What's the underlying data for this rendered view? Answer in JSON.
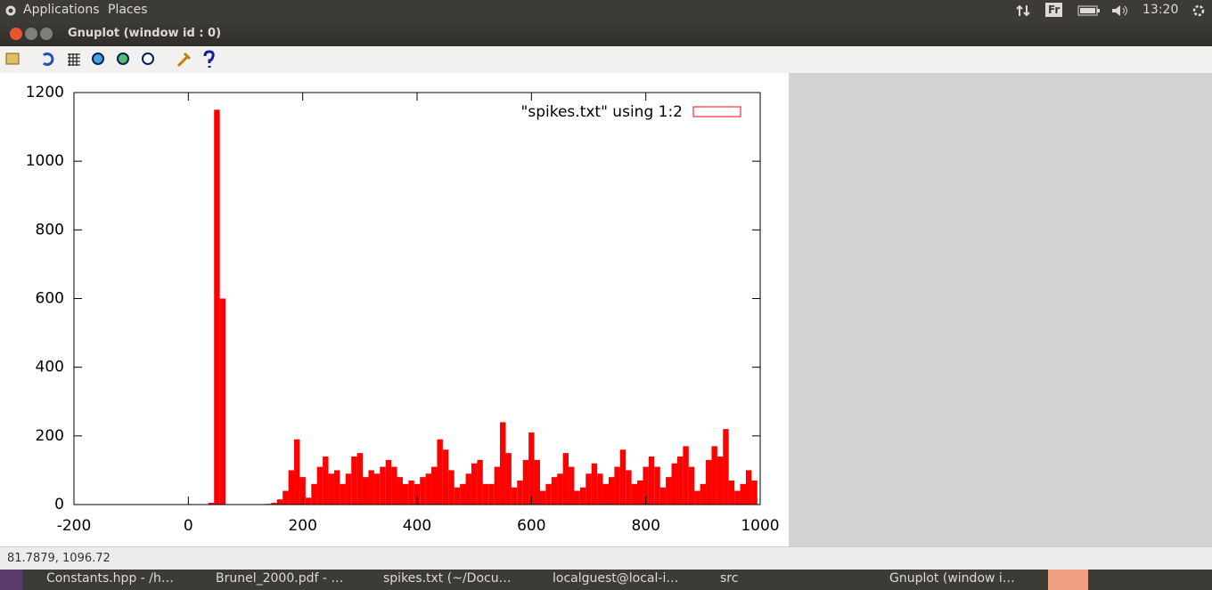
{
  "top_panel": {
    "menus": [
      "Applications",
      "Places"
    ],
    "keyboard": "Fr",
    "clock": "13:20"
  },
  "window": {
    "title": "Gnuplot (window id : 0)"
  },
  "chart_data": {
    "type": "bar",
    "legend_label": "\"spikes.txt\" using 1:2",
    "color": "#ff0000",
    "legend": "top-right",
    "x": [
      40,
      50,
      60,
      70,
      80,
      90,
      100,
      110,
      120,
      130,
      140,
      150,
      160,
      170,
      180,
      190,
      200,
      210,
      220,
      230,
      240,
      250,
      260,
      270,
      280,
      290,
      300,
      310,
      320,
      330,
      340,
      350,
      360,
      370,
      380,
      390,
      400,
      410,
      420,
      430,
      440,
      450,
      460,
      470,
      480,
      490,
      500,
      510,
      520,
      530,
      540,
      550,
      560,
      570,
      580,
      590,
      600,
      610,
      620,
      630,
      640,
      650,
      660,
      670,
      680,
      690,
      700,
      710,
      720,
      730,
      740,
      750,
      760,
      770,
      780,
      790,
      800,
      810,
      820,
      830,
      840,
      850,
      860,
      870,
      880,
      890,
      900,
      910,
      920,
      930,
      940,
      950,
      960,
      970,
      980,
      990
    ],
    "values": [
      5,
      1150,
      600,
      0,
      0,
      0,
      0,
      0,
      0,
      0,
      2,
      5,
      15,
      40,
      100,
      190,
      80,
      20,
      60,
      110,
      140,
      90,
      100,
      60,
      90,
      140,
      150,
      80,
      100,
      90,
      110,
      130,
      110,
      80,
      60,
      70,
      60,
      80,
      90,
      110,
      190,
      160,
      100,
      50,
      60,
      90,
      120,
      130,
      60,
      60,
      110,
      240,
      150,
      50,
      70,
      130,
      210,
      130,
      40,
      60,
      80,
      90,
      150,
      110,
      40,
      50,
      90,
      120,
      90,
      60,
      80,
      110,
      160,
      100,
      60,
      70,
      110,
      140,
      110,
      50,
      80,
      120,
      140,
      170,
      110,
      40,
      60,
      130,
      170,
      140,
      220,
      70,
      40,
      60,
      100,
      70
    ],
    "xlim": [
      -200,
      1000
    ],
    "ylim": [
      0,
      1200
    ],
    "xticks": [
      -200,
      0,
      200,
      400,
      600,
      800,
      1000
    ],
    "yticks": [
      0,
      200,
      400,
      600,
      800,
      1000,
      1200
    ]
  },
  "status_bar": {
    "coordinates": "81.7879,  1096.72"
  },
  "taskbar": {
    "items": [
      "Constants.hpp - /h…",
      "Brunel_2000.pdf - …",
      "spikes.txt (~/Docu…",
      "localguest@local-i…",
      "src",
      "Gnuplot (window i…"
    ]
  }
}
